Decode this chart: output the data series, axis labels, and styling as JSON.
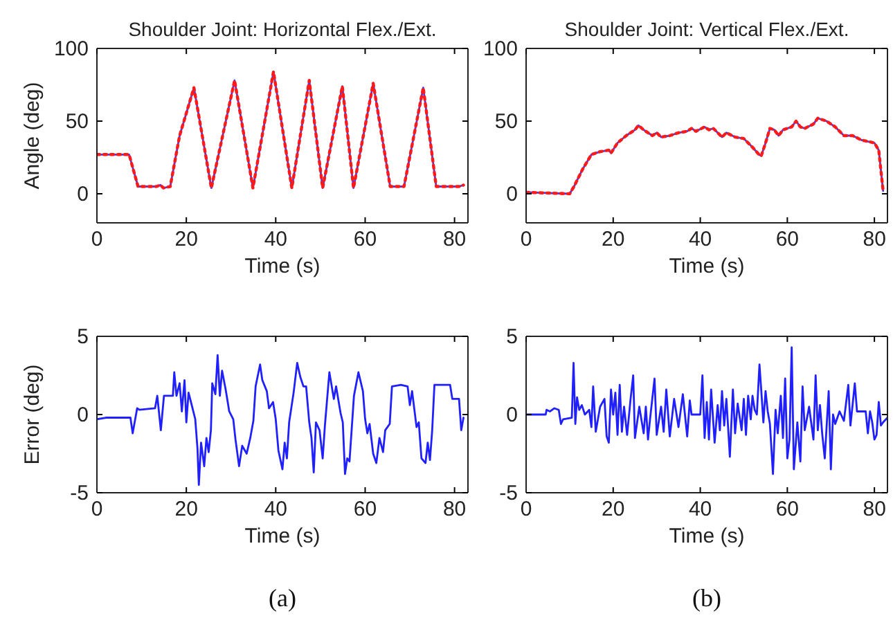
{
  "chart_data": [
    {
      "type": "line",
      "title": "Shoulder Joint: Horizontal Flex./Ext.",
      "xlabel": "Time (s)",
      "ylabel": "Angle (deg)",
      "xlim": [
        0,
        83
      ],
      "xticks": [
        0,
        20,
        40,
        60,
        80
      ],
      "ylim": [
        -20,
        100
      ],
      "yticks": [
        0,
        50,
        100
      ],
      "grid": false,
      "series": [
        {
          "color": "#3b3bff",
          "line_style": "solid",
          "x": [
            0,
            7.2,
            9.2,
            13.3,
            14.2,
            14.9,
            16.4,
            18.5,
            21.7,
            25.6,
            30.8,
            34.9,
            39.5,
            43.6,
            47.5,
            50.5,
            54.9,
            57.4,
            61.8,
            65.6,
            68.7,
            73,
            75.9,
            81,
            82
          ],
          "values": [
            27,
            27,
            5,
            5,
            6,
            4,
            5,
            40,
            73,
            4,
            78,
            4,
            84,
            4,
            78,
            4,
            74,
            4,
            76,
            5,
            5,
            73,
            5,
            5,
            6
          ]
        },
        {
          "color": "#ff1a1a",
          "line_style": "dotted",
          "x": [
            0,
            7.2,
            9.2,
            13.3,
            14.2,
            14.9,
            16.4,
            18.5,
            21.7,
            25.6,
            30.8,
            34.9,
            39.5,
            43.6,
            47.5,
            50.5,
            54.9,
            57.4,
            61.8,
            65.6,
            68.7,
            73,
            75.9,
            81,
            82
          ],
          "values": [
            27,
            27,
            5,
            5,
            6,
            4,
            5,
            40,
            73,
            4,
            78,
            4,
            84,
            4,
            78,
            4,
            74,
            4,
            76,
            5,
            5,
            73,
            5,
            5,
            6
          ]
        }
      ]
    },
    {
      "type": "line",
      "title": "Shoulder Joint: Vertical Flex./Ext.",
      "xlabel": "Time (s)",
      "xlim": [
        0,
        83
      ],
      "xticks": [
        0,
        20,
        40,
        60,
        80
      ],
      "ylim": [
        -20,
        100
      ],
      "yticks": [
        0,
        50,
        100
      ],
      "grid": false,
      "series": [
        {
          "color": "#3b3bff",
          "line_style": "solid",
          "x": [
            0,
            10,
            11,
            13,
            15,
            17,
            19,
            19.5,
            21,
            23,
            25,
            25.8,
            27,
            29,
            30,
            31,
            33,
            35,
            37,
            38,
            39,
            41,
            42,
            43,
            45,
            46,
            48,
            50,
            52,
            53.5,
            54,
            55,
            56,
            57,
            58,
            59,
            61,
            62,
            63,
            64,
            66,
            67,
            69,
            71,
            73,
            75,
            77,
            80,
            81,
            82
          ],
          "values": [
            1,
            0,
            5,
            17,
            27,
            29,
            30,
            28,
            35,
            40,
            44,
            47,
            44,
            40,
            42,
            39,
            40,
            42,
            43,
            45,
            43,
            46,
            44,
            45,
            39,
            42,
            39,
            38,
            32,
            27,
            26,
            35,
            45,
            44,
            40,
            44,
            46,
            50,
            46,
            45,
            48,
            52,
            50,
            46,
            40,
            40,
            37,
            35,
            30,
            2
          ]
        },
        {
          "color": "#ff1a1a",
          "line_style": "dotted",
          "x": [
            0,
            10,
            11,
            13,
            15,
            17,
            19,
            19.5,
            21,
            23,
            25,
            25.8,
            27,
            29,
            30,
            31,
            33,
            35,
            37,
            38,
            39,
            41,
            42,
            43,
            45,
            46,
            48,
            50,
            52,
            53.5,
            54,
            55,
            56,
            57,
            58,
            59,
            61,
            62,
            63,
            64,
            66,
            67,
            69,
            71,
            73,
            75,
            77,
            80,
            81,
            82
          ],
          "values": [
            1,
            0,
            5,
            17,
            27,
            29,
            30,
            28,
            35,
            40,
            44,
            47,
            44,
            40,
            42,
            39,
            40,
            42,
            43,
            45,
            43,
            46,
            44,
            45,
            39,
            42,
            39,
            38,
            32,
            27,
            26,
            35,
            45,
            44,
            40,
            44,
            46,
            50,
            46,
            45,
            48,
            52,
            50,
            46,
            40,
            40,
            37,
            35,
            30,
            2
          ]
        }
      ]
    },
    {
      "type": "line",
      "xlabel": "Time (s)",
      "ylabel": "Error (deg)",
      "xlim": [
        0,
        83
      ],
      "xticks": [
        0,
        20,
        40,
        60,
        80
      ],
      "ylim": [
        -5,
        5
      ],
      "yticks": [
        -5,
        0,
        5
      ],
      "grid": false,
      "annotations": [
        "(a)"
      ],
      "series": [
        {
          "color": "#2020ff",
          "line_style": "solid",
          "x": [
            0,
            2,
            7.5,
            8,
            8.5,
            9,
            9.5,
            13,
            13.5,
            14.3,
            15,
            17,
            17.3,
            17.8,
            18.5,
            19,
            19.6,
            20,
            20.5,
            21.3,
            22,
            22.5,
            22.8,
            23.3,
            24,
            24.5,
            25,
            25.5,
            25.8,
            26.5,
            27,
            27.5,
            28,
            28.8,
            29.6,
            30.5,
            31,
            31.8,
            32.5,
            33.5,
            34.3,
            35,
            35.5,
            36.5,
            37,
            38,
            38.5,
            39.4,
            40,
            40.6,
            41.5,
            42,
            42.5,
            43,
            44,
            44.8,
            45.5,
            46.2,
            46.8,
            47.5,
            48,
            48.5,
            49,
            49.8,
            50.5,
            51,
            52,
            53,
            53.5,
            54.5,
            55,
            55.5,
            56,
            56.5,
            57.5,
            58.5,
            59.5,
            60,
            60.5,
            61,
            61.8,
            62.5,
            63.2,
            64,
            64.5,
            65.5,
            66,
            68,
            69.5,
            70,
            70.5,
            71.5,
            72,
            72.6,
            73.5,
            74,
            74.5,
            75,
            75.5,
            79,
            79.5,
            81,
            81.5,
            82
          ],
          "values": [
            -0.3,
            -0.2,
            -0.2,
            -1.2,
            -0.4,
            0.4,
            0.3,
            0.4,
            1.2,
            -1,
            1.2,
            1.2,
            2.7,
            1.2,
            2,
            0.2,
            2.2,
            -0.5,
            1.4,
            0.5,
            -0.3,
            -2.2,
            -4.5,
            -1.8,
            -3.3,
            -1.5,
            -2.4,
            -1,
            2,
            1.3,
            3.8,
            1.2,
            2.8,
            1.6,
            0.2,
            -0.3,
            -1.6,
            -3.3,
            -2,
            -2.5,
            -1.5,
            -0.4,
            1.8,
            3.2,
            2.2,
            1.5,
            0.4,
            0.8,
            -0.3,
            -2.3,
            -3.5,
            -1.8,
            -2.8,
            -0.5,
            1.4,
            3.3,
            2.4,
            1.8,
            1.8,
            -0.5,
            -1.5,
            -3.7,
            -0.5,
            -1,
            -2.8,
            -0.7,
            2.7,
            1,
            1.8,
            0.1,
            -0.5,
            -3.8,
            -2.8,
            -3,
            1.2,
            2.7,
            1.5,
            -0.3,
            -1.2,
            -0.6,
            -2.5,
            -3.1,
            -1.5,
            -2.4,
            -1,
            -0.6,
            1.8,
            1.9,
            1.8,
            0.6,
            1.5,
            -0.8,
            -0.5,
            -2.8,
            -3.1,
            -1.8,
            -2.9,
            -1,
            1.9,
            1.9,
            1,
            1,
            -1,
            -0.2
          ]
        }
      ]
    },
    {
      "type": "line",
      "xlabel": "Time (s)",
      "xlim": [
        0,
        83
      ],
      "xticks": [
        0,
        20,
        40,
        60,
        80
      ],
      "ylim": [
        -5,
        5
      ],
      "yticks": [
        -5,
        0,
        5
      ],
      "grid": false,
      "annotations": [
        "(b)"
      ],
      "series": [
        {
          "color": "#2020ff",
          "line_style": "solid",
          "x": [
            0,
            4.5,
            4.7,
            5.5,
            6.5,
            7.5,
            8,
            8.5,
            10.5,
            10.9,
            11.3,
            11.7,
            12.2,
            12.8,
            13.5,
            14.5,
            15,
            15.4,
            16,
            17,
            18,
            18.5,
            19,
            19.5,
            20,
            20.5,
            21,
            21.5,
            22,
            22.5,
            23.2,
            24,
            24.6,
            25,
            26,
            27,
            27.5,
            28,
            28.5,
            29.5,
            30,
            31,
            31.6,
            32.2,
            33,
            34,
            35,
            36,
            37,
            37.6,
            38,
            40,
            40.5,
            41,
            41.5,
            42,
            42.5,
            43.3,
            44,
            44.5,
            45,
            45.5,
            46,
            46.8,
            47.5,
            48,
            48.6,
            49.5,
            50,
            50.5,
            51,
            51.6,
            52,
            52.5,
            53,
            53.6,
            54,
            54.5,
            55,
            55.5,
            56,
            56.7,
            57.3,
            57.8,
            58.5,
            59,
            59.5,
            60,
            60.5,
            61,
            61.5,
            62.3,
            63,
            63.5,
            64,
            65,
            66,
            66.5,
            67,
            67.5,
            68,
            68.6,
            69.5,
            70,
            70.5,
            71,
            72,
            73,
            74,
            74.5,
            75.5,
            76,
            78,
            78.5,
            79,
            79.5,
            80,
            80.5,
            81,
            81.5,
            82,
            83
          ],
          "values": [
            0,
            0,
            0.3,
            0.2,
            0.4,
            0.3,
            -0.6,
            -0.3,
            -0.2,
            3.3,
            -0.6,
            1.1,
            0.3,
            0.6,
            0,
            0.3,
            -0.8,
            1.8,
            -1.1,
            0.5,
            1,
            -1.4,
            -1.8,
            1.6,
            0,
            1.4,
            -1.3,
            1.9,
            -1.1,
            0.5,
            -1.3,
            1,
            2.5,
            -1.5,
            0.5,
            -1.2,
            0.5,
            -1.6,
            -0.2,
            2.3,
            -1.3,
            0.5,
            -1.1,
            1.6,
            -1.4,
            1,
            -0.8,
            1.3,
            -1.4,
            0.9,
            0,
            0,
            2.5,
            -1.5,
            0.8,
            -1.6,
            1.6,
            -1.8,
            0.6,
            -1,
            1.5,
            -0.7,
            1,
            -2.7,
            1.6,
            -1.2,
            0.7,
            -1,
            1,
            -1.3,
            1.2,
            -0.3,
            1.2,
            0.3,
            0,
            3.2,
            1.6,
            -0.5,
            1.5,
            0.2,
            -0.6,
            -3.8,
            0.3,
            -1.2,
            1.2,
            -1.5,
            2.3,
            -2.8,
            -1.6,
            4.3,
            -3.5,
            -0.5,
            -3,
            1.8,
            -1,
            0.5,
            -1.6,
            2.5,
            -1,
            0.6,
            -1.2,
            -2.8,
            1.5,
            -3.5,
            0,
            -0.6,
            0.2,
            -0.4,
            1.9,
            -0.7,
            2,
            0.2,
            0.2,
            -1.2,
            0.2,
            -0.5,
            -1.6,
            -1.3,
            0.8,
            -0.7,
            -0.5,
            -0.2
          ]
        }
      ]
    }
  ]
}
